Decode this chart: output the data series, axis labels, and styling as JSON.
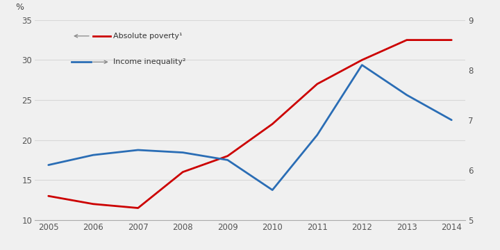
{
  "years": [
    2005,
    2006,
    2007,
    2008,
    2009,
    2010,
    2011,
    2012,
    2013,
    2014
  ],
  "absolute_poverty": [
    13.0,
    12.0,
    11.5,
    16.0,
    18.0,
    22.0,
    27.0,
    30.0,
    32.5,
    32.5
  ],
  "income_inequality": [
    6.1,
    6.3,
    6.4,
    6.35,
    6.2,
    5.6,
    6.7,
    8.1,
    7.5,
    7.0
  ],
  "left_ylim": [
    10,
    35
  ],
  "right_ylim": [
    5,
    9
  ],
  "left_yticks": [
    10,
    15,
    20,
    25,
    30,
    35
  ],
  "right_yticks": [
    5,
    6,
    7,
    8,
    9
  ],
  "xticks": [
    2005,
    2006,
    2007,
    2008,
    2009,
    2010,
    2011,
    2012,
    2013,
    2014
  ],
  "poverty_color": "#cc0000",
  "inequality_color": "#2a6db5",
  "legend_label_poverty": "Absolute poverty¹",
  "legend_label_inequality": "Income inequality²",
  "pct_label": "%",
  "background_color": "#f0f0f0",
  "grid_color": "#d8d8d8",
  "linewidth": 2.0,
  "figsize": [
    7.2,
    3.6
  ],
  "dpi": 100
}
